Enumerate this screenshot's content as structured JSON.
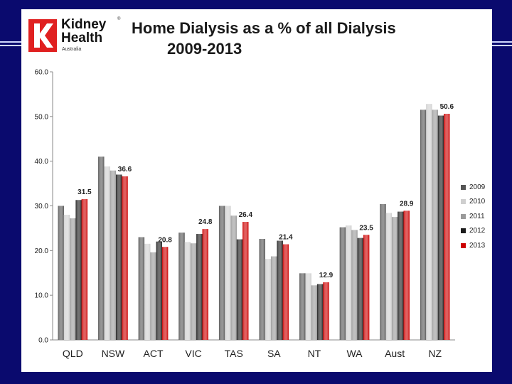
{
  "logo": {
    "line1": "Kidney",
    "line2": "Health",
    "sub": "Australia",
    "reg": "®",
    "brand_color": "#e02020"
  },
  "title": {
    "line1": "Home Dialysis as a % of all Dialysis",
    "line2": "2009-2013"
  },
  "colors": {
    "2009": "#555555",
    "2010": "#cfcfcf",
    "2011": "#9a9a9a",
    "2012": "#1c1c1c",
    "2013": "#cc0000"
  },
  "chart_data": {
    "type": "bar",
    "title": "Home Dialysis as a % of all Dialysis 2009-2013",
    "categories": [
      "QLD",
      "NSW",
      "ACT",
      "VIC",
      "TAS",
      "SA",
      "NT",
      "WA",
      "Aust",
      "NZ"
    ],
    "series": [
      {
        "name": "2009",
        "values": [
          30.0,
          41.0,
          23.0,
          24.0,
          30.0,
          22.6,
          14.9,
          25.2,
          30.4,
          51.5
        ]
      },
      {
        "name": "2010",
        "values": [
          28.0,
          38.8,
          21.5,
          21.9,
          30.0,
          18.1,
          14.9,
          25.6,
          28.4,
          52.8
        ]
      },
      {
        "name": "2011",
        "values": [
          27.2,
          37.9,
          19.6,
          21.6,
          27.8,
          18.7,
          12.2,
          24.6,
          27.5,
          51.5
        ]
      },
      {
        "name": "2012",
        "values": [
          31.3,
          37.0,
          22.0,
          23.7,
          22.5,
          22.2,
          12.5,
          22.8,
          28.7,
          50.2
        ]
      },
      {
        "name": "2013",
        "values": [
          31.5,
          36.6,
          20.8,
          24.8,
          26.4,
          21.4,
          12.9,
          23.5,
          28.9,
          50.6
        ]
      }
    ],
    "data_labels": [
      "31.5",
      "36.6",
      "20.8",
      "24.8",
      "26.4",
      "21.4",
      "12.9",
      "23.5",
      "28.9",
      "50.6"
    ],
    "yticks": [
      "0.0",
      "10.0",
      "20.0",
      "30.0",
      "40.0",
      "50.0",
      "60.0"
    ],
    "ylim": [
      0,
      60
    ],
    "xlabel": "",
    "ylabel": "",
    "legend_position": "right",
    "grid": false
  }
}
